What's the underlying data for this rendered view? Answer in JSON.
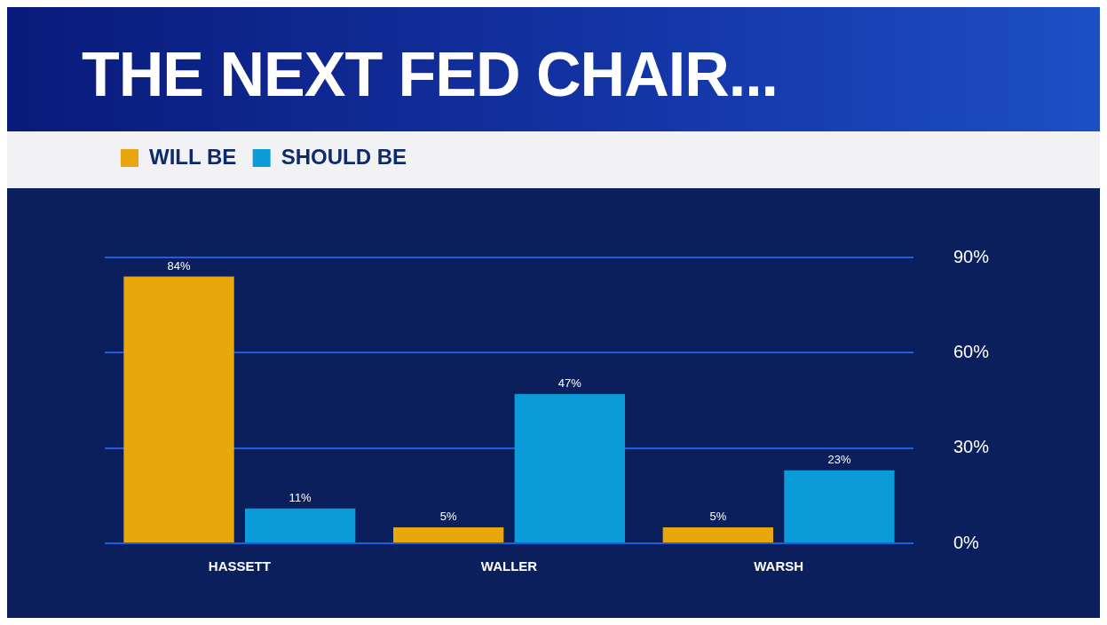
{
  "chart_data": {
    "type": "bar",
    "title": "THE NEXT FED CHAIR...",
    "categories": [
      "HASSETT",
      "WALLER",
      "WARSH"
    ],
    "series": [
      {
        "name": "WILL BE",
        "color": "#e8a80c",
        "values": [
          84,
          5,
          5
        ],
        "value_labels": [
          "84%",
          "5%",
          "5%"
        ]
      },
      {
        "name": "SHOULD BE",
        "color": "#0b9bd8",
        "values": [
          11,
          47,
          23
        ],
        "value_labels": [
          "11%",
          "47%",
          "23%"
        ]
      }
    ],
    "ylim": [
      0,
      90
    ],
    "yticks": [
      {
        "value": 0,
        "label": "0%"
      },
      {
        "value": 30,
        "label": "30%"
      },
      {
        "value": 60,
        "label": "60%"
      },
      {
        "value": 90,
        "label": "90%"
      }
    ],
    "grid": "y",
    "legend": "top left"
  }
}
